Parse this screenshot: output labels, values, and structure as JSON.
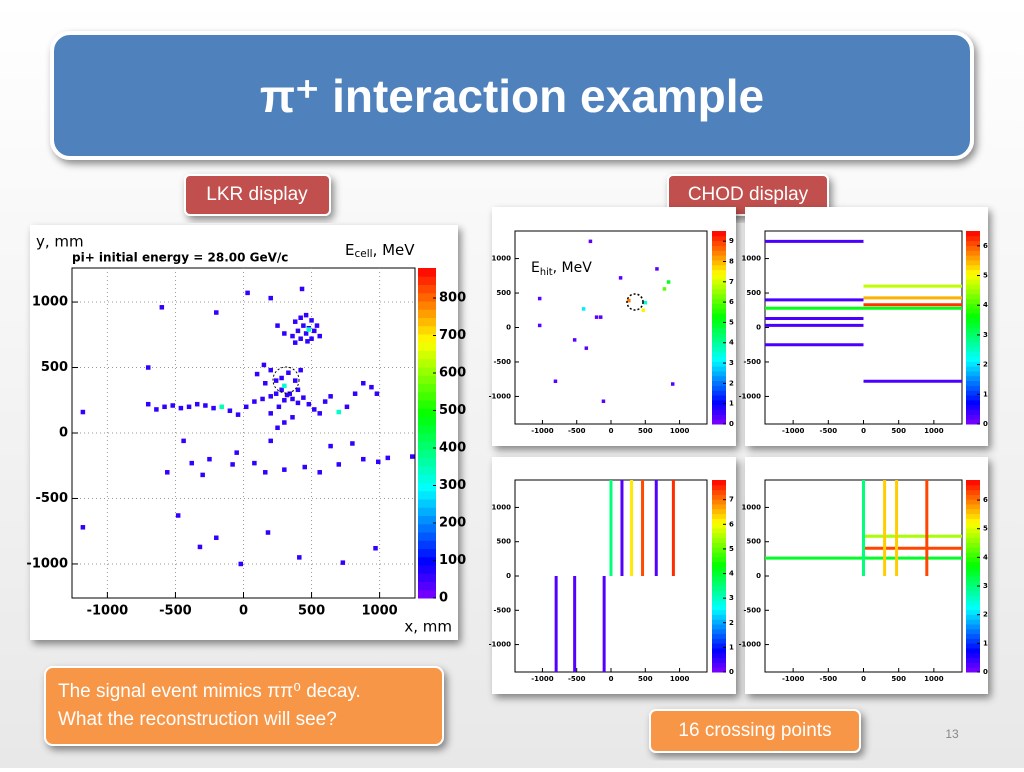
{
  "title": "π⁺ interaction example",
  "lkr_label": "LKR display",
  "chod_label": "CHOD display",
  "lkr": {
    "title": "pi+ initial energy = 28.00 GeV/c",
    "y_label": "y, mm",
    "x_label": "x, mm",
    "z_label": {
      "main": "E",
      "sub": "cell",
      "unit": ", MeV"
    },
    "grid": true,
    "xlim": [
      -1260,
      1260
    ],
    "ylim": [
      -1260,
      1260
    ],
    "zlim": [
      0,
      880
    ],
    "xticks": [
      -1000,
      -500,
      0,
      500,
      1000
    ],
    "yticks": [
      -1000,
      -500,
      0,
      500,
      1000
    ],
    "zticks": [
      0,
      100,
      200,
      300,
      400,
      500,
      600,
      700,
      800
    ],
    "hits": [
      [
        380,
        850,
        60
      ],
      [
        420,
        880,
        60
      ],
      [
        460,
        900,
        60
      ],
      [
        500,
        860,
        60
      ],
      [
        440,
        820,
        60
      ],
      [
        480,
        800,
        60
      ],
      [
        520,
        780,
        60
      ],
      [
        400,
        780,
        60
      ],
      [
        460,
        760,
        60
      ],
      [
        500,
        720,
        60
      ],
      [
        420,
        720,
        60
      ],
      [
        360,
        740,
        60
      ],
      [
        540,
        820,
        60
      ],
      [
        470,
        700,
        60
      ],
      [
        380,
        690,
        60
      ],
      [
        300,
        760,
        60
      ],
      [
        250,
        820,
        60
      ],
      [
        560,
        740,
        60
      ],
      [
        480,
        790,
        330
      ],
      [
        -700,
        220,
        60
      ],
      [
        -640,
        180,
        60
      ],
      [
        -580,
        200,
        60
      ],
      [
        -520,
        210,
        60
      ],
      [
        -460,
        190,
        60
      ],
      [
        -400,
        200,
        60
      ],
      [
        -340,
        220,
        60
      ],
      [
        -280,
        210,
        60
      ],
      [
        -220,
        190,
        60
      ],
      [
        -160,
        200,
        350
      ],
      [
        -100,
        170,
        60
      ],
      [
        -40,
        140,
        60
      ],
      [
        20,
        200,
        60
      ],
      [
        80,
        240,
        60
      ],
      [
        140,
        260,
        60
      ],
      [
        200,
        280,
        60
      ],
      [
        240,
        300,
        60
      ],
      [
        280,
        330,
        60
      ],
      [
        320,
        290,
        60
      ],
      [
        360,
        260,
        60
      ],
      [
        400,
        230,
        60
      ],
      [
        440,
        270,
        60
      ],
      [
        480,
        220,
        60
      ],
      [
        520,
        180,
        60
      ],
      [
        560,
        150,
        60
      ],
      [
        600,
        240,
        60
      ],
      [
        640,
        280,
        60
      ],
      [
        700,
        160,
        330
      ],
      [
        760,
        200,
        60
      ],
      [
        820,
        300,
        60
      ],
      [
        880,
        380,
        60
      ],
      [
        940,
        350,
        60
      ],
      [
        980,
        300,
        60
      ],
      [
        240,
        400,
        60
      ],
      [
        280,
        420,
        60
      ],
      [
        300,
        360,
        330
      ],
      [
        340,
        300,
        60
      ],
      [
        300,
        250,
        60
      ],
      [
        260,
        200,
        60
      ],
      [
        200,
        150,
        60
      ],
      [
        360,
        120,
        60
      ],
      [
        300,
        80,
        60
      ],
      [
        250,
        40,
        60
      ],
      [
        400,
        330,
        60
      ],
      [
        380,
        400,
        60
      ],
      [
        330,
        460,
        60
      ],
      [
        420,
        480,
        60
      ],
      [
        200,
        480,
        60
      ],
      [
        150,
        520,
        60
      ],
      [
        100,
        450,
        60
      ],
      [
        160,
        380,
        60
      ],
      [
        -1180,
        160,
        60
      ],
      [
        -700,
        500,
        60
      ],
      [
        -600,
        960,
        60
      ],
      [
        -200,
        920,
        60
      ],
      [
        30,
        1070,
        60
      ],
      [
        200,
        1030,
        60
      ],
      [
        430,
        1100,
        60
      ],
      [
        -440,
        -60,
        60
      ],
      [
        -560,
        -300,
        60
      ],
      [
        -380,
        -230,
        60
      ],
      [
        -250,
        -200,
        60
      ],
      [
        -80,
        -240,
        60
      ],
      [
        80,
        -230,
        60
      ],
      [
        160,
        -300,
        60
      ],
      [
        300,
        -280,
        60
      ],
      [
        450,
        -260,
        60
      ],
      [
        560,
        -300,
        60
      ],
      [
        700,
        -240,
        60
      ],
      [
        880,
        -200,
        60
      ],
      [
        990,
        -220,
        60
      ],
      [
        1060,
        -190,
        60
      ],
      [
        800,
        -80,
        60
      ],
      [
        640,
        -100,
        60
      ],
      [
        200,
        -60,
        60
      ],
      [
        -50,
        -150,
        60
      ],
      [
        -300,
        -320,
        60
      ],
      [
        -480,
        -630,
        60
      ],
      [
        -200,
        -800,
        60
      ],
      [
        -320,
        -870,
        60
      ],
      [
        -20,
        -1000,
        60
      ],
      [
        180,
        -760,
        60
      ],
      [
        410,
        -950,
        60
      ],
      [
        730,
        -990,
        60
      ],
      [
        970,
        -880,
        60
      ],
      [
        1240,
        -180,
        60
      ],
      [
        -1180,
        -720,
        60
      ]
    ]
  },
  "chod": [
    {
      "z_label": {
        "main": "E",
        "sub": "hit",
        "unit": ", MeV"
      },
      "xlim": [
        -1400,
        1400
      ],
      "ylim": [
        -1400,
        1400
      ],
      "zlim": [
        0,
        9.5
      ],
      "xticks": [
        -1000,
        -500,
        0,
        500,
        1000
      ],
      "yticks": [
        -1000,
        -500,
        0,
        500,
        1000
      ],
      "zticks": [
        0,
        1,
        2,
        3,
        4,
        5,
        6,
        7,
        8,
        9
      ],
      "hits": [
        [
          -300,
          1250,
          0.3
        ],
        [
          140,
          720,
          0.3
        ],
        [
          670,
          850,
          0.3
        ],
        [
          840,
          660,
          5
        ],
        [
          780,
          560,
          6
        ],
        [
          -1040,
          420,
          0.3
        ],
        [
          -400,
          270,
          3
        ],
        [
          -210,
          150,
          0.3
        ],
        [
          -150,
          150,
          0.3
        ],
        [
          260,
          390,
          8.5
        ],
        [
          500,
          360,
          3.5
        ],
        [
          470,
          250,
          7.5
        ],
        [
          -1040,
          30,
          0.3
        ],
        [
          -530,
          -180,
          0.3
        ],
        [
          -360,
          -300,
          0.3
        ],
        [
          -810,
          -780,
          0.3
        ],
        [
          900,
          -820,
          0.3
        ],
        [
          -110,
          -1070,
          0.3
        ]
      ]
    },
    {
      "xlim": [
        -1400,
        1400
      ],
      "ylim": [
        -1400,
        1400
      ],
      "zlim": [
        0,
        6.5
      ],
      "xticks": [
        -1000,
        -500,
        0,
        500,
        1000
      ],
      "yticks": [
        -1000,
        -500,
        0,
        500,
        1000
      ],
      "zticks": [
        0,
        1,
        2,
        3,
        4,
        5,
        6
      ],
      "hslabs": [
        [
          1250,
          -1400,
          0,
          0.3
        ],
        [
          600,
          0,
          1400,
          4.7
        ],
        [
          430,
          0,
          1400,
          5.5
        ],
        [
          400,
          -1400,
          0,
          0.3
        ],
        [
          330,
          0,
          1400,
          6.2
        ],
        [
          280,
          -1400,
          1400,
          3.5
        ],
        [
          130,
          -1400,
          0,
          0.3
        ],
        [
          30,
          -1400,
          0,
          0.3
        ],
        [
          -250,
          -1400,
          0,
          0.3
        ],
        [
          -780,
          0,
          1400,
          0.3
        ]
      ]
    },
    {
      "xlim": [
        -1400,
        1400
      ],
      "ylim": [
        -1400,
        1400
      ],
      "zlim": [
        0,
        7.8
      ],
      "xticks": [
        -1000,
        -500,
        0,
        500,
        1000
      ],
      "yticks": [
        -1000,
        -500,
        0,
        500,
        1000
      ],
      "zticks": [
        0,
        1,
        2,
        3,
        4,
        5,
        6,
        7
      ],
      "vslabs": [
        [
          0,
          0,
          1400,
          3.5
        ],
        [
          160,
          0,
          1400,
          0.3
        ],
        [
          300,
          0,
          1400,
          6.2
        ],
        [
          460,
          0,
          1400,
          7.3
        ],
        [
          660,
          0,
          1400,
          0.3
        ],
        [
          910,
          0,
          1400,
          7.5
        ],
        [
          -800,
          -1400,
          0,
          0.3
        ],
        [
          -530,
          -1400,
          0,
          0.3
        ],
        [
          -100,
          -1400,
          0,
          0.3
        ]
      ]
    },
    {
      "xlim": [
        -1400,
        1400
      ],
      "ylim": [
        -1400,
        1400
      ],
      "zlim": [
        0,
        6.7
      ],
      "xticks": [
        -1000,
        -500,
        0,
        500,
        1000
      ],
      "yticks": [
        -1000,
        -500,
        0,
        500,
        1000
      ],
      "zticks": [
        0,
        1,
        2,
        3,
        4,
        5,
        6
      ],
      "vslabs": [
        [
          0,
          0,
          1400,
          3
        ],
        [
          300,
          0,
          1400,
          5.5
        ],
        [
          470,
          0,
          1400,
          5.5
        ],
        [
          900,
          0,
          1400,
          6.3
        ]
      ],
      "hslabs": [
        [
          580,
          0,
          1400,
          4.7
        ],
        [
          405,
          0,
          1400,
          6.3
        ],
        [
          260,
          -1400,
          1400,
          3.5
        ]
      ]
    }
  ],
  "note": {
    "line1": "The signal event mimics ππ⁰ decay.",
    "line2": "What the reconstruction will see?"
  },
  "crossing": "16 crossing points",
  "page": 13
}
